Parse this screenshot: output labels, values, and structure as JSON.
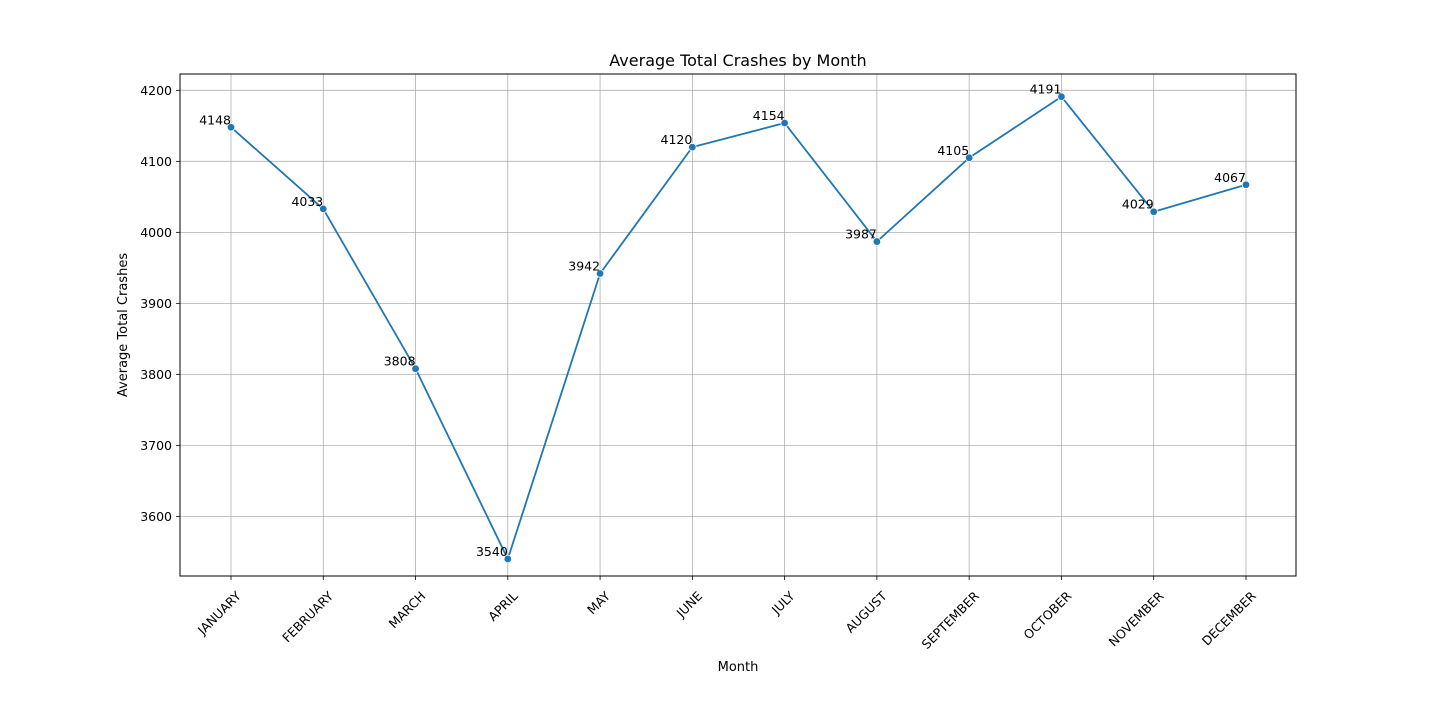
{
  "chart_data": {
    "type": "line",
    "title": "Average Total Crashes by Month",
    "xlabel": "Month",
    "ylabel": "Average Total Crashes",
    "categories": [
      "JANUARY",
      "FEBRUARY",
      "MARCH",
      "APRIL",
      "MAY",
      "JUNE",
      "JULY",
      "AUGUST",
      "SEPTEMBER",
      "OCTOBER",
      "NOVEMBER",
      "DECEMBER"
    ],
    "values": [
      4148,
      4033,
      3808,
      3540,
      3942,
      4120,
      4154,
      3987,
      4105,
      4191,
      4029,
      4067
    ],
    "data_labels": [
      "4148",
      "4033",
      "3808",
      "3540",
      "3942",
      "4120",
      "4154",
      "3987",
      "4105",
      "4191",
      "4029",
      "4067"
    ],
    "yticks": [
      3600,
      3700,
      3800,
      3900,
      4000,
      4100,
      4200
    ],
    "ylim": [
      3516,
      4223
    ],
    "grid": true,
    "legend": false,
    "line_color": "#1f77b4",
    "grid_color": "#b0b0b0"
  }
}
